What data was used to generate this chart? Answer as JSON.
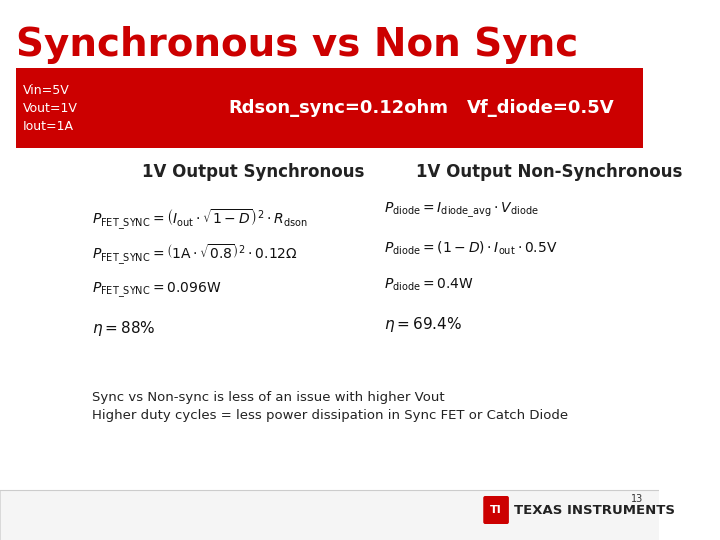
{
  "title": "Synchronous vs Non Sync",
  "title_color": "#CC0000",
  "title_fontsize": 28,
  "bg_color": "#FFFFFF",
  "red_bar_color": "#CC0000",
  "red_bar_text_color": "#FFFFFF",
  "left_info_lines": [
    "Vin=5V",
    "Vout=1V",
    "Iout=1A"
  ],
  "center_label": "Rdson_sync=0.12ohm",
  "right_label": "Vf_diode=0.5V",
  "col1_header": "1V Output Synchronous",
  "col2_header": "1V Output Non-Synchronous",
  "footer_line1": "Sync vs Non-sync is less of an issue with higher Vout",
  "footer_line2": "Higher duty cycles = less power dissipation in Sync FET or Catch Diode",
  "page_number": "13",
  "footer_bg": "#F5F5F5",
  "border_color": "#CCCCCC"
}
